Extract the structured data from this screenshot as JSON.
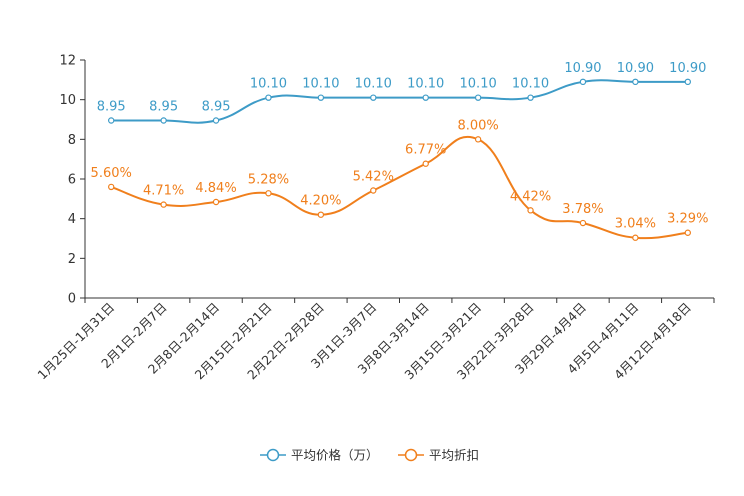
{
  "chart_data": {
    "type": "line",
    "categories": [
      "1月25日-1月31日",
      "2月1日-2月7日",
      "2月8日-2月14日",
      "2月15日-2月21日",
      "2月22日-2月28日",
      "3月1日-3月7日",
      "3月8日-3月14日",
      "3月15日-3月21日",
      "3月22日-3月28日",
      "3月29日-4月4日",
      "4月5日-4月11日",
      "4月12日-4月18日"
    ],
    "series": [
      {
        "name": "平均价格（万）",
        "color": "#3d9bc7",
        "values": [
          8.95,
          8.95,
          8.95,
          10.1,
          10.1,
          10.1,
          10.1,
          10.1,
          10.1,
          10.9,
          10.9,
          10.9
        ],
        "labels": [
          "8.95",
          "8.95",
          "8.95",
          "10.10",
          "10.10",
          "10.10",
          "10.10",
          "10.10",
          "10.10",
          "10.90",
          "10.90",
          "10.90"
        ]
      },
      {
        "name": "平均折扣",
        "color": "#f07f1c",
        "values": [
          5.6,
          4.71,
          4.84,
          5.28,
          4.2,
          5.42,
          6.77,
          8.0,
          4.42,
          3.78,
          3.04,
          3.29
        ],
        "labels": [
          "5.60%",
          "4.71%",
          "4.84%",
          "5.28%",
          "4.20%",
          "5.42%",
          "6.77%",
          "8.00%",
          "4.42%",
          "3.78%",
          "3.04%",
          "3.29%"
        ]
      }
    ],
    "y_ticks": [
      "0",
      "2",
      "4",
      "6",
      "8",
      "10",
      "12"
    ],
    "ylim": [
      0,
      12
    ],
    "grid": false,
    "legend": "bottom-center",
    "title": "",
    "xlabel": "",
    "ylabel": ""
  }
}
